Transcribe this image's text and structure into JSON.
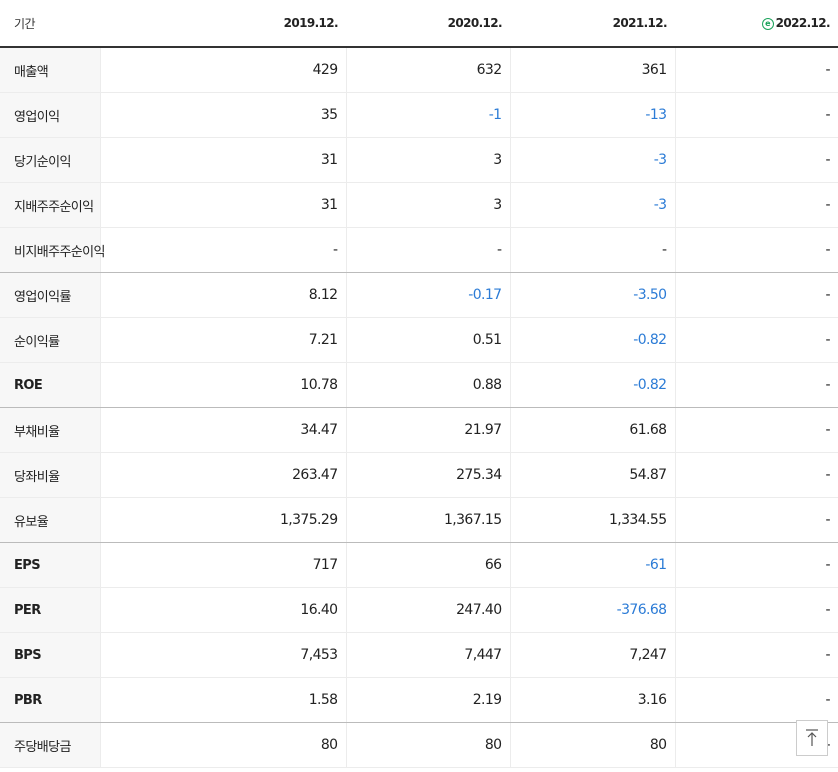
{
  "table": {
    "header": [
      "기간",
      "2019.12.",
      "2020.12.",
      "2021.12.",
      "2022.12."
    ],
    "rows": [
      [
        "매출액",
        "429",
        "632",
        "361",
        "-"
      ],
      [
        "영업이익",
        "35",
        "-1",
        "-13",
        "-"
      ],
      [
        "당기순이익",
        "31",
        "3",
        "-3",
        "-"
      ],
      [
        "지배주주순이익",
        "31",
        "3",
        "-3",
        "-"
      ],
      [
        "비지배주주순이익",
        "-",
        "-",
        "-",
        "-"
      ],
      [
        "영업이익률",
        "8.12",
        "-0.17",
        "-3.50",
        "-"
      ],
      [
        "순이익률",
        "7.21",
        "0.51",
        "-0.82",
        "-"
      ],
      [
        "ROE",
        "10.78",
        "0.88",
        "-0.82",
        "-"
      ],
      [
        "부채비율",
        "34.47",
        "21.97",
        "61.68",
        "-"
      ],
      [
        "당좌비율",
        "263.47",
        "275.34",
        "54.87",
        "-"
      ],
      [
        "유보율",
        "1,375.29",
        "1,367.15",
        "1,334.55",
        "-"
      ],
      [
        "EPS",
        "717",
        "66",
        "-61",
        "-"
      ],
      [
        "PER",
        "16.40",
        "247.40",
        "-376.68",
        "-"
      ],
      [
        "BPS",
        "7,453",
        "7,447",
        "7,247",
        "-"
      ],
      [
        "PBR",
        "1.58",
        "2.19",
        "3.16",
        "-"
      ],
      [
        "주당배당금",
        "80",
        "80",
        "80",
        "-"
      ]
    ]
  }
}
